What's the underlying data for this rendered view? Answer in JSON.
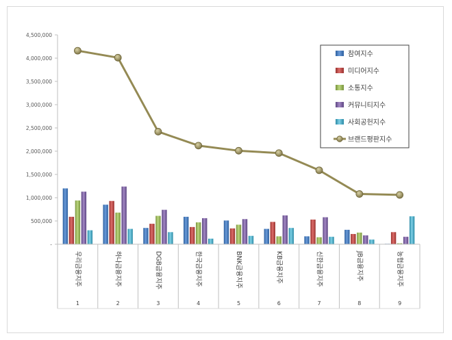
{
  "chart_data": {
    "type": "bar",
    "title": "",
    "xlabel": "",
    "ylabel": "",
    "ylim": [
      0,
      4500000
    ],
    "yticks": [
      "-",
      "500,000",
      "1,000,000",
      "1,500,000",
      "2,000,000",
      "2,500,000",
      "3,000,000",
      "3,500,000",
      "4,000,000",
      "4,500,000"
    ],
    "grid": false,
    "legend_position": "top-right",
    "categories": [
      "우리금융지주",
      "하나금융지주",
      "DGB금융지주",
      "한국금융지주",
      "BNK금융지주",
      "KB금융지주",
      "신한금융지주",
      "JB금융지주",
      "농협금융지주"
    ],
    "indices": [
      "1",
      "2",
      "3",
      "4",
      "5",
      "6",
      "7",
      "8",
      "9"
    ],
    "series": [
      {
        "name": "참여지수",
        "kind": "bar",
        "color": "#4a7ebf",
        "values": [
          1200000,
          850000,
          350000,
          590000,
          510000,
          330000,
          170000,
          310000,
          10000
        ]
      },
      {
        "name": "미디어지수",
        "kind": "bar",
        "color": "#c0504d",
        "values": [
          590000,
          930000,
          440000,
          370000,
          340000,
          480000,
          530000,
          220000,
          260000
        ]
      },
      {
        "name": "소통지수",
        "kind": "bar",
        "color": "#9bbb59",
        "values": [
          940000,
          680000,
          610000,
          470000,
          420000,
          170000,
          150000,
          250000,
          20000
        ]
      },
      {
        "name": "커뮤니티지수",
        "kind": "bar",
        "color": "#8064a2",
        "values": [
          1130000,
          1240000,
          740000,
          560000,
          540000,
          620000,
          580000,
          190000,
          160000
        ]
      },
      {
        "name": "사회공헌지수",
        "kind": "bar",
        "color": "#4bacc6",
        "values": [
          300000,
          330000,
          260000,
          120000,
          180000,
          350000,
          160000,
          100000,
          600000
        ]
      },
      {
        "name": "브랜드평판지수",
        "kind": "line",
        "color": "#948a54",
        "values": [
          4160000,
          4010000,
          2420000,
          2120000,
          2010000,
          1960000,
          1590000,
          1080000,
          1060000
        ]
      }
    ]
  }
}
